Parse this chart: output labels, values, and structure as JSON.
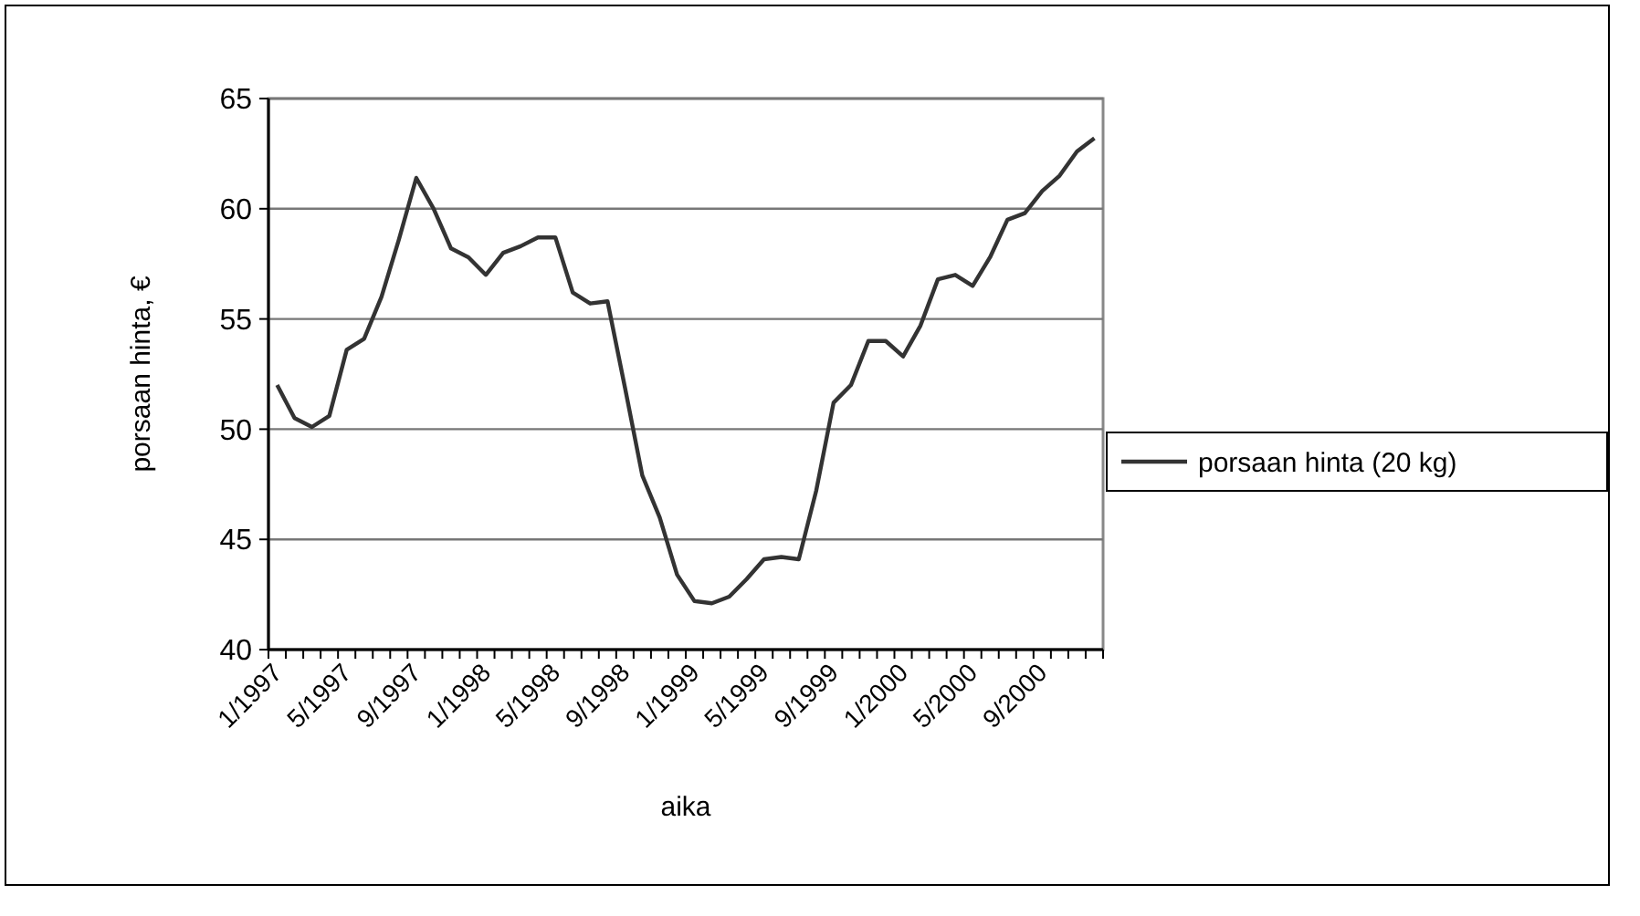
{
  "chart_data": {
    "type": "line",
    "xlabel": "aika",
    "ylabel": "porsaan hinta, €",
    "categories": [
      "1/1997",
      null,
      null,
      null,
      "5/1997",
      null,
      null,
      null,
      "9/1997",
      null,
      null,
      null,
      "1/1998",
      null,
      null,
      null,
      "5/1998",
      null,
      null,
      null,
      "9/1998",
      null,
      null,
      null,
      "1/1999",
      null,
      null,
      null,
      "5/1999",
      null,
      null,
      null,
      "9/1999",
      null,
      null,
      null,
      "1/2000",
      null,
      null,
      null,
      "5/2000",
      null,
      null,
      null,
      "9/2000",
      null,
      null,
      null
    ],
    "series": [
      {
        "name": "porsaan hinta (20 kg)",
        "color": "#333333",
        "values": [
          52.0,
          50.5,
          50.1,
          50.6,
          53.6,
          54.1,
          56.0,
          58.6,
          61.4,
          60.0,
          58.2,
          57.8,
          57.0,
          58.0,
          58.3,
          58.7,
          58.7,
          56.2,
          55.7,
          55.8,
          51.9,
          47.9,
          46.0,
          43.4,
          42.2,
          42.1,
          42.4,
          43.2,
          44.1,
          44.2,
          44.1,
          47.2,
          51.2,
          52.0,
          54.0,
          54.0,
          53.3,
          54.7,
          56.8,
          57.0,
          56.5,
          57.8,
          59.5,
          59.8,
          60.8,
          61.5,
          62.6,
          63.2
        ]
      }
    ],
    "ylim": [
      40,
      65
    ],
    "yticks": [
      40,
      45,
      50,
      55,
      60,
      65
    ],
    "grid": "y",
    "legend": "right",
    "marker": "none",
    "line_style": "solid"
  }
}
